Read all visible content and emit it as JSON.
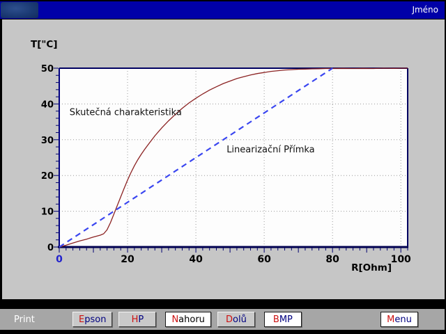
{
  "titlebar": {
    "title": "Jméno",
    "logo": "app-logo-emblem",
    "color": "#0000a8"
  },
  "chart": {
    "y_axis_title": "T[\"C]",
    "x_axis_title": "R[Ohm]"
  },
  "chart_data": {
    "type": "line",
    "title": "",
    "xlabel": "R[Ohm]",
    "ylabel": "T[\"C]",
    "xlim": [
      0,
      102
    ],
    "ylim": [
      0,
      50
    ],
    "x_ticks": [
      0,
      20,
      40,
      60,
      80,
      100
    ],
    "y_ticks": [
      0,
      10,
      20,
      30,
      40,
      50
    ],
    "minor_step_x": 2,
    "minor_step_y": 2,
    "grid": true,
    "legend_position": "none",
    "series": [
      {
        "name": "Skutečná charakteristika",
        "color": "#8b2222",
        "style": "solid",
        "points": [
          [
            0,
            0
          ],
          [
            2,
            0.5
          ],
          [
            4,
            1.1
          ],
          [
            6,
            1.7
          ],
          [
            8,
            2.2
          ],
          [
            10,
            2.8
          ],
          [
            12,
            3.3
          ],
          [
            13,
            3.7
          ],
          [
            14,
            4.8
          ],
          [
            15,
            6.8
          ],
          [
            16,
            9.2
          ],
          [
            17,
            11.6
          ],
          [
            18,
            14.0
          ],
          [
            19,
            16.4
          ],
          [
            20,
            18.7
          ],
          [
            21,
            20.8
          ],
          [
            22,
            22.7
          ],
          [
            23,
            24.4
          ],
          [
            24,
            25.9
          ],
          [
            25,
            27.3
          ],
          [
            26,
            28.6
          ],
          [
            28,
            31.1
          ],
          [
            30,
            33.3
          ],
          [
            32,
            35.3
          ],
          [
            34,
            37.1
          ],
          [
            36,
            38.8
          ],
          [
            38,
            40.3
          ],
          [
            40,
            41.6
          ],
          [
            42,
            42.8
          ],
          [
            44,
            43.9
          ],
          [
            46,
            44.8
          ],
          [
            48,
            45.7
          ],
          [
            50,
            46.4
          ],
          [
            52,
            47.1
          ],
          [
            54,
            47.6
          ],
          [
            56,
            48.1
          ],
          [
            58,
            48.5
          ],
          [
            60,
            48.8
          ],
          [
            62,
            49.1
          ],
          [
            64,
            49.3
          ],
          [
            66,
            49.5
          ],
          [
            68,
            49.6
          ],
          [
            70,
            49.7
          ],
          [
            72,
            49.75
          ],
          [
            74,
            49.8
          ],
          [
            76,
            49.85
          ],
          [
            78,
            49.9
          ],
          [
            80,
            49.9
          ],
          [
            83,
            49.95
          ],
          [
            86,
            49.9
          ],
          [
            89,
            49.95
          ],
          [
            92,
            49.9
          ],
          [
            95,
            50
          ],
          [
            98,
            49.95
          ],
          [
            100,
            50
          ],
          [
            102,
            50
          ]
        ]
      },
      {
        "name": "Linearizační Přímka",
        "color": "#3a46f0",
        "style": "dashed",
        "points": [
          [
            0,
            0
          ],
          [
            80,
            50
          ]
        ]
      }
    ],
    "annotations": [
      {
        "text": "Skutečná charakteristika",
        "x": 3,
        "y": 36.9
      },
      {
        "text": "Linearizační Přímka",
        "x": 49,
        "y": 26.5
      }
    ],
    "origin_x_label_color": "#2222cc",
    "axis_color": "#000070",
    "grid_color": "#9a9a9a"
  },
  "toolbar": {
    "print_label": "Print",
    "buttons": [
      {
        "name": "epson",
        "label": "Epson",
        "bg": "gray",
        "hot_color": "#cc1111",
        "text_color": "#000080"
      },
      {
        "name": "hp",
        "label": "HP",
        "bg": "gray",
        "hot_color": "#cc1111",
        "text_color": "#000080"
      },
      {
        "name": "nahoru",
        "label": "Nahoru",
        "bg": "white",
        "hot_color": "#cc1111",
        "text_color": "#000000"
      },
      {
        "name": "dolu",
        "label": "Dolů",
        "bg": "gray",
        "hot_color": "#cc1111",
        "text_color": "#000080"
      },
      {
        "name": "bmp",
        "label": "BMP",
        "bg": "white",
        "hot_color": "#cc1111",
        "text_color": "#000080"
      },
      {
        "name": "menu",
        "label": "Menu",
        "bg": "white",
        "hot_color": "#cc1111",
        "text_color": "#000080"
      }
    ]
  }
}
